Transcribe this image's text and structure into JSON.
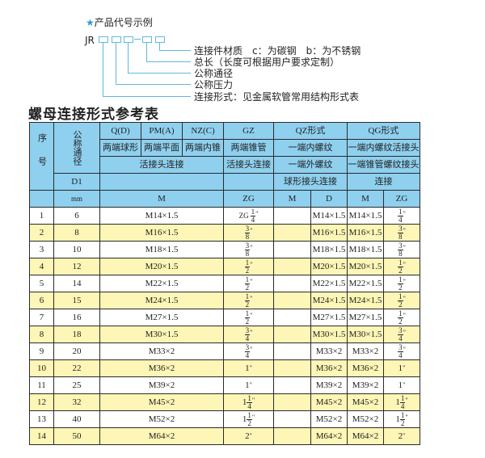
{
  "diagram": {
    "title": "产品代号示例",
    "code_prefix": "JR",
    "labels": [
      "连接件材质　c：为碳钢　b：为不锈钢",
      "总长（长度可根据用户要求定制）",
      "公称通径",
      "公称压力",
      "连接形式：见金属软管常用结构形式表"
    ],
    "accent_color": "#5fb8e0"
  },
  "heading": "螺母连接形式参考表",
  "table": {
    "header": {
      "seq": "序号",
      "dn": "公称通径",
      "d1": "D1",
      "mm": "mm",
      "qd": "Q(D)",
      "pm": "PM(A)",
      "nz": "NZ(C)",
      "gz": "GZ",
      "qz": "QZ形式",
      "qg": "QG形式",
      "qd_desc": "两端球形",
      "pm_desc": "两端平面",
      "nz_desc": "两端内锥",
      "gz_desc": "两端锥管",
      "qz_desc": "一端内螺纹",
      "qg_desc": "一端内螺纹活接头",
      "m_conn": "活接头连接",
      "gz_conn": "活接头连接",
      "qz_conn": "一端外螺纹",
      "qg_conn": "一端锥管螺纹接头",
      "qz_conn2": "球形接头连接",
      "qg_conn2": "连接",
      "col_m": "M",
      "col_zg": "ZG",
      "qz_m": "M",
      "qz_d": "D",
      "qg_m": "M",
      "qg_zg": "ZG"
    },
    "header_color": "#8fd0ef",
    "stripe_color": "#fdf6b6",
    "rows": [
      {
        "seq": "1",
        "dn": "6",
        "m": "M14×1.5",
        "zg": {
          "prefix": "ZG",
          "whole": "",
          "num": "1",
          "den": "4",
          "unit": "\""
        },
        "qz_d": "M14×1.5",
        "qg_m": "M14×1.5",
        "qg_zg": {
          "whole": "",
          "num": "1",
          "den": "4",
          "unit": "\""
        }
      },
      {
        "seq": "2",
        "dn": "8",
        "m": "M16×1.5",
        "zg": {
          "whole": "",
          "num": "3",
          "den": "8",
          "unit": "\""
        },
        "qz_d": "M16×1.5",
        "qg_m": "M16×1.5",
        "qg_zg": {
          "whole": "",
          "num": "3",
          "den": "8",
          "unit": "\""
        }
      },
      {
        "seq": "3",
        "dn": "10",
        "m": "M18×1.5",
        "zg": {
          "whole": "",
          "num": "3",
          "den": "8",
          "unit": "\""
        },
        "qz_d": "M18×1.5",
        "qg_m": "M18×1.5",
        "qg_zg": {
          "whole": "",
          "num": "3",
          "den": "8",
          "unit": "\""
        }
      },
      {
        "seq": "4",
        "dn": "12",
        "m": "M20×1.5",
        "zg": {
          "whole": "",
          "num": "1",
          "den": "2",
          "unit": "\""
        },
        "qz_d": "M20×1.5",
        "qg_m": "M20×1.5",
        "qg_zg": {
          "whole": "",
          "num": "1",
          "den": "2",
          "unit": "\""
        }
      },
      {
        "seq": "5",
        "dn": "14",
        "m": "M22×1.5",
        "zg": {
          "whole": "",
          "num": "1",
          "den": "2",
          "unit": "\""
        },
        "qz_d": "M22×1.5",
        "qg_m": "M22×1.5",
        "qg_zg": {
          "whole": "",
          "num": "1",
          "den": "2",
          "unit": "\""
        }
      },
      {
        "seq": "6",
        "dn": "15",
        "m": "M24×1.5",
        "zg": {
          "whole": "",
          "num": "1",
          "den": "2",
          "unit": "\""
        },
        "qz_d": "M24×1.5",
        "qg_m": "M24×1.5",
        "qg_zg": {
          "whole": "",
          "num": "1",
          "den": "2",
          "unit": "\""
        }
      },
      {
        "seq": "7",
        "dn": "16",
        "m": "M27×1.5",
        "zg": {
          "whole": "",
          "num": "1",
          "den": "2",
          "unit": "\""
        },
        "qz_d": "M27×1.5",
        "qg_m": "M27×1.5",
        "qg_zg": {
          "whole": "",
          "num": "1",
          "den": "2",
          "unit": "\""
        }
      },
      {
        "seq": "8",
        "dn": "18",
        "m": "M30×1.5",
        "zg": {
          "whole": "",
          "num": "3",
          "den": "4",
          "unit": "\""
        },
        "qz_d": "M30×1.5",
        "qg_m": "M30×1.5",
        "qg_zg": {
          "whole": "",
          "num": "3",
          "den": "4",
          "unit": "\""
        }
      },
      {
        "seq": "9",
        "dn": "20",
        "m": "M33×2",
        "zg": {
          "whole": "",
          "num": "3",
          "den": "4",
          "unit": "\""
        },
        "qz_d": "M33×2",
        "qg_m": "M33×2",
        "qg_zg": {
          "whole": "",
          "num": "3",
          "den": "4",
          "unit": "\""
        }
      },
      {
        "seq": "10",
        "dn": "22",
        "m": "M36×2",
        "zg": {
          "whole": "1",
          "unit": "\""
        },
        "qz_d": "M36×2",
        "qg_m": "M36×2",
        "qg_zg": {
          "whole": "1",
          "unit": "\""
        }
      },
      {
        "seq": "11",
        "dn": "25",
        "m": "M39×2",
        "zg": {
          "whole": "1",
          "unit": "\""
        },
        "qz_d": "M39×2",
        "qg_m": "M39×2",
        "qg_zg": {
          "whole": "1",
          "unit": "\""
        }
      },
      {
        "seq": "12",
        "dn": "32",
        "m": "M45×2",
        "zg": {
          "whole": "1",
          "num": "1",
          "den": "4",
          "unit": "\""
        },
        "qz_d": "M45×2",
        "qg_m": "M45×2",
        "qg_zg": {
          "whole": "1",
          "num": "1",
          "den": "4",
          "unit": "\""
        }
      },
      {
        "seq": "13",
        "dn": "40",
        "m": "M52×2",
        "zg": {
          "whole": "1",
          "num": "1",
          "den": "2",
          "unit": "\""
        },
        "qz_d": "M52×2",
        "qg_m": "M52×2",
        "qg_zg": {
          "whole": "1",
          "num": "1",
          "den": "2",
          "unit": "\""
        }
      },
      {
        "seq": "14",
        "dn": "50",
        "m": "M64×2",
        "zg": {
          "whole": "2",
          "unit": "\""
        },
        "qz_d": "M64×2",
        "qg_m": "M64×2",
        "qg_zg": {
          "whole": "2",
          "unit": "\""
        }
      }
    ]
  }
}
